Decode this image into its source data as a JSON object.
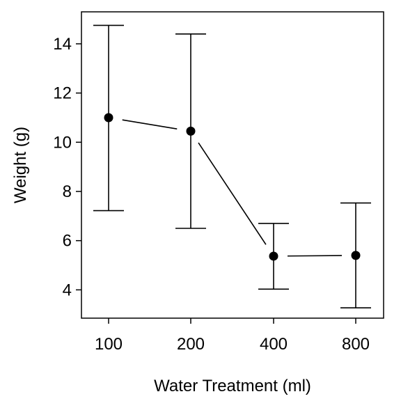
{
  "chart_data": {
    "type": "line",
    "xlabel": "Water Treatment (ml)",
    "ylabel": "Weight (g)",
    "categories": [
      "100",
      "200",
      "400",
      "800"
    ],
    "series": [
      {
        "values": [
          11.0,
          10.45,
          5.37,
          5.4
        ],
        "error_low": [
          7.22,
          6.5,
          4.03,
          3.27
        ],
        "error_high": [
          14.75,
          14.4,
          6.7,
          7.53
        ]
      }
    ],
    "ylim": [
      2.85,
      15.3
    ],
    "yticks": [
      4,
      6,
      8,
      10,
      12,
      14
    ],
    "grid": false,
    "legend": "none",
    "colors": {
      "line": "#000000",
      "point": "#000000",
      "frame": "#000000",
      "background": "#ffffff"
    }
  }
}
